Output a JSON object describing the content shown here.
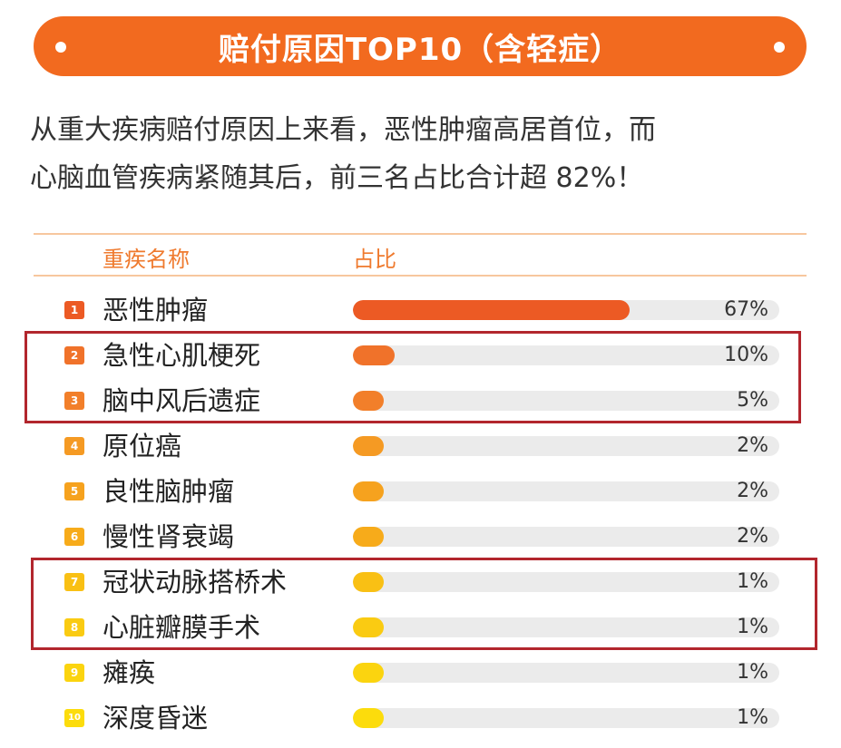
{
  "banner": {
    "title": "赔付原因TOP10（含轻症）"
  },
  "intro": {
    "line1": "从重大疾病赔付原因上来看，恶性肿瘤高居首位，而",
    "line2": "心脑血管疾病紧随其后，前三名占比合计超 82%！"
  },
  "table_header": {
    "name_col": "重疾名称",
    "share_col": "占比"
  },
  "colors": {
    "accent": "#f26a1f",
    "highlight_border": "#b2262d",
    "track": "#ebebeb",
    "header_text": "#ef7a2e"
  },
  "chart_data": {
    "type": "bar",
    "orientation": "horizontal",
    "categories": [
      "恶性肿瘤",
      "急性心肌梗死",
      "脑中风后遗症",
      "原位癌",
      "良性脑肿瘤",
      "慢性肾衰竭",
      "冠状动脉搭桥术",
      "心脏瓣膜手术",
      "瘫痪",
      "深度昏迷"
    ],
    "values": [
      67,
      10,
      5,
      2,
      2,
      2,
      1,
      1,
      1,
      1
    ],
    "value_labels": [
      "67%",
      "10%",
      "5%",
      "2%",
      "2%",
      "2%",
      "1%",
      "1%",
      "1%",
      "1%"
    ],
    "ranks": [
      "1",
      "2",
      "3",
      "4",
      "5",
      "6",
      "7",
      "8",
      "9",
      "10"
    ],
    "bar_colors": [
      "#ec5a24",
      "#f0722a",
      "#f27f2a",
      "#f59a23",
      "#f6a21e",
      "#f7ab1a",
      "#f9c014",
      "#facb12",
      "#fbd40f",
      "#fcdc0c"
    ],
    "highlight_groups": [
      [
        1,
        2
      ],
      [
        6,
        7
      ]
    ],
    "xlim": [
      0,
      100
    ]
  }
}
